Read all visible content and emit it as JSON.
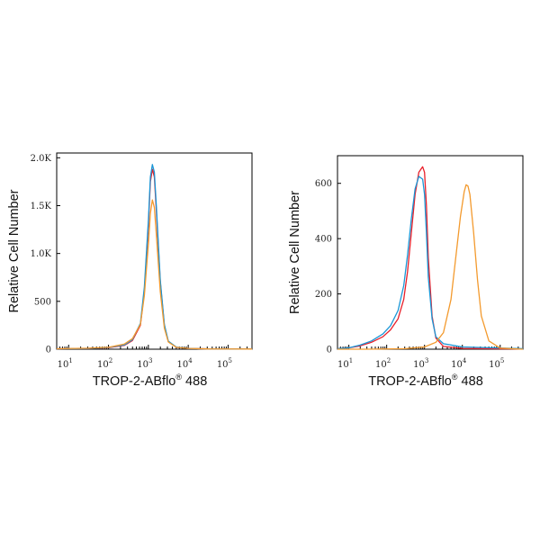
{
  "colors": {
    "red": "#e8202a",
    "blue": "#1a96d6",
    "orange": "#f39a2e",
    "axis": "#000000"
  },
  "chart_data": [
    {
      "type": "line",
      "panel": "left",
      "xlabel": "TROP-2-ABflo",
      "xlabel_sup": "®",
      "xlabel_tail": " 488",
      "ylabel": "Relative Cell Number",
      "xscale": "log",
      "xlim_log10": [
        0.7,
        5.6
      ],
      "ylim": [
        0,
        2050
      ],
      "x_ticks": [
        {
          "base": "10",
          "exp": "1",
          "log": 1
        },
        {
          "base": "10",
          "exp": "2",
          "log": 2
        },
        {
          "base": "10",
          "exp": "3",
          "log": 3
        },
        {
          "base": "10",
          "exp": "4",
          "log": 4
        },
        {
          "base": "10",
          "exp": "5",
          "log": 5
        }
      ],
      "y_ticks": [
        {
          "label": "0",
          "value": 0
        },
        {
          "label": "500",
          "value": 500
        },
        {
          "label": "1.0K",
          "value": 1000
        },
        {
          "label": "1.5K",
          "value": 1500
        },
        {
          "label": "2.0K",
          "value": 2000
        }
      ],
      "series": [
        {
          "name": "red",
          "color": "#e8202a",
          "x": [
            0.7,
            1.5,
            2.0,
            2.4,
            2.6,
            2.8,
            2.9,
            3.0,
            3.05,
            3.1,
            3.15,
            3.2,
            3.3,
            3.4,
            3.5,
            3.7,
            4.0,
            4.5,
            5.6
          ],
          "y": [
            5,
            8,
            15,
            40,
            90,
            250,
            600,
            1300,
            1750,
            1880,
            1800,
            1450,
            700,
            250,
            80,
            20,
            8,
            3,
            2
          ]
        },
        {
          "name": "blue",
          "color": "#1a96d6",
          "x": [
            0.7,
            1.5,
            2.0,
            2.4,
            2.6,
            2.8,
            2.9,
            3.0,
            3.05,
            3.1,
            3.15,
            3.2,
            3.3,
            3.4,
            3.5,
            3.7,
            4.0,
            4.5,
            5.6
          ],
          "y": [
            5,
            8,
            18,
            45,
            100,
            270,
            650,
            1350,
            1800,
            1930,
            1850,
            1500,
            720,
            260,
            85,
            22,
            8,
            3,
            2
          ]
        },
        {
          "name": "orange",
          "color": "#f39a2e",
          "x": [
            0.7,
            1.5,
            2.0,
            2.4,
            2.6,
            2.8,
            2.9,
            3.0,
            3.05,
            3.1,
            3.15,
            3.2,
            3.3,
            3.4,
            3.5,
            3.7,
            4.0,
            4.5,
            5.6
          ],
          "y": [
            5,
            10,
            20,
            55,
            110,
            260,
            560,
            1100,
            1420,
            1560,
            1480,
            1200,
            600,
            220,
            75,
            20,
            8,
            3,
            2
          ]
        }
      ]
    },
    {
      "type": "line",
      "panel": "right",
      "xlabel": "TROP-2-ABflo",
      "xlabel_sup": "®",
      "xlabel_tail": " 488",
      "ylabel": "Relative Cell Number",
      "xscale": "log",
      "xlim_log10": [
        0.7,
        5.6
      ],
      "ylim": [
        0,
        700
      ],
      "x_ticks": [
        {
          "base": "10",
          "exp": "1",
          "log": 1
        },
        {
          "base": "10",
          "exp": "2",
          "log": 2
        },
        {
          "base": "10",
          "exp": "3",
          "log": 3
        },
        {
          "base": "10",
          "exp": "4",
          "log": 4
        },
        {
          "base": "10",
          "exp": "5",
          "log": 5
        }
      ],
      "y_ticks": [
        {
          "label": "0",
          "value": 0
        },
        {
          "label": "200",
          "value": 200
        },
        {
          "label": "400",
          "value": 400
        },
        {
          "label": "600",
          "value": 600
        }
      ],
      "series": [
        {
          "name": "red",
          "color": "#e8202a",
          "x": [
            0.7,
            1.0,
            1.3,
            1.6,
            1.9,
            2.1,
            2.3,
            2.45,
            2.55,
            2.65,
            2.75,
            2.85,
            2.95,
            3.0,
            3.05,
            3.1,
            3.2,
            3.3,
            3.5,
            4.0,
            5.6
          ],
          "y": [
            2,
            5,
            12,
            25,
            45,
            70,
            110,
            180,
            280,
            420,
            560,
            640,
            660,
            640,
            520,
            330,
            120,
            40,
            10,
            3,
            1
          ]
        },
        {
          "name": "blue",
          "color": "#1a96d6",
          "x": [
            0.7,
            1.0,
            1.3,
            1.6,
            1.9,
            2.1,
            2.3,
            2.45,
            2.55,
            2.65,
            2.75,
            2.85,
            2.95,
            3.0,
            3.05,
            3.1,
            3.2,
            3.3,
            3.5,
            4.0,
            5.6
          ],
          "y": [
            2,
            5,
            15,
            30,
            55,
            85,
            140,
            230,
            340,
            470,
            580,
            625,
            615,
            560,
            420,
            260,
            110,
            45,
            20,
            8,
            2
          ]
        },
        {
          "name": "orange",
          "color": "#f39a2e",
          "x": [
            0.7,
            1.5,
            2.5,
            3.0,
            3.3,
            3.5,
            3.7,
            3.85,
            3.95,
            4.05,
            4.1,
            4.15,
            4.2,
            4.3,
            4.4,
            4.5,
            4.7,
            5.0,
            5.6
          ],
          "y": [
            0,
            0,
            2,
            8,
            25,
            60,
            180,
            360,
            480,
            570,
            595,
            590,
            560,
            420,
            250,
            120,
            30,
            4,
            0
          ]
        }
      ]
    }
  ]
}
